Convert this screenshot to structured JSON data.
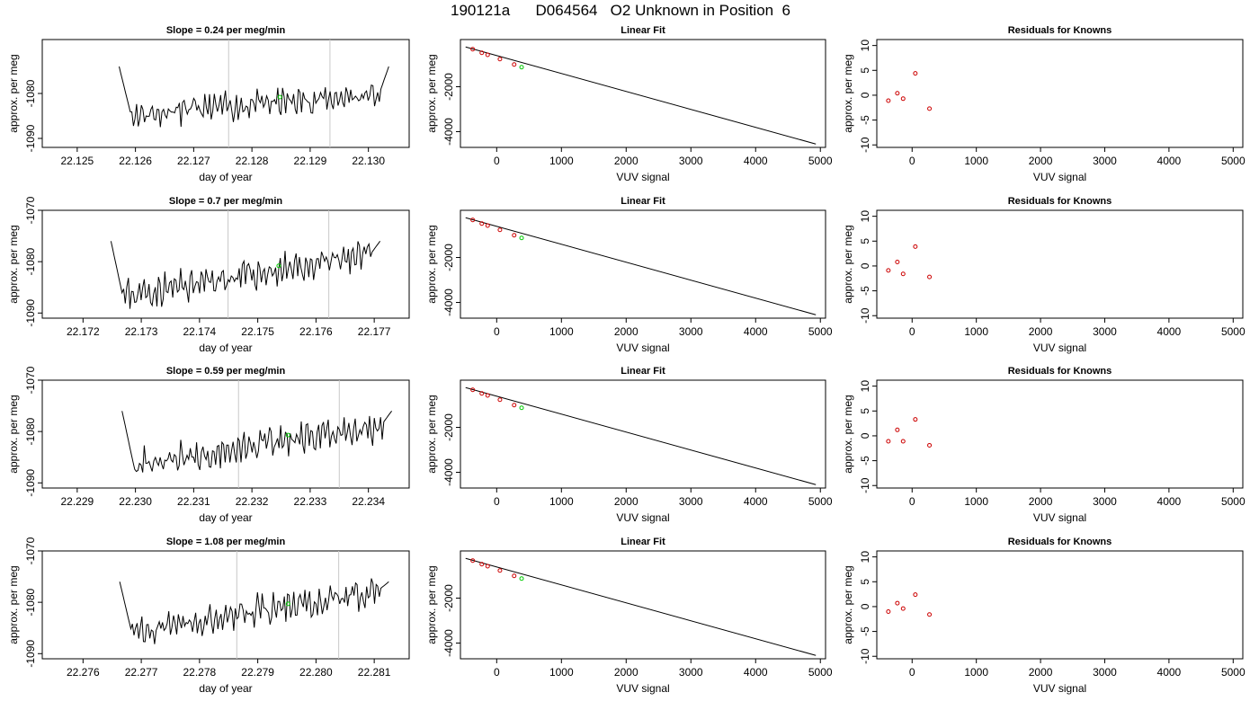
{
  "figure_title": "190121a      D064564   O2 Unknown in Position  6",
  "colors": {
    "line": "#000000",
    "guide": "#c8c8c8",
    "unknown": "#00cc00",
    "residual": "#cc0000"
  },
  "chart_data": [
    {
      "type": "line",
      "row": 0,
      "panel": "timeseries",
      "title": "Slope =  0.24  per meg/min",
      "xlabel": "day of year",
      "ylabel": "approx. per meg",
      "xlim": [
        22.1244,
        22.1307
      ],
      "ylim": [
        -1092,
        -1068
      ],
      "xticks": [
        "22.125",
        "22.126",
        "22.127",
        "22.128",
        "22.129",
        "22.130"
      ],
      "yticks": [
        "-1090",
        "-1080"
      ],
      "x_start": 22.12572,
      "x_end": 22.13035,
      "guides": [
        22.1276,
        22.12934
      ],
      "unknown_point": [
        22.12848,
        -1080.8
      ],
      "trend_start": -1085.0,
      "trend_end": -1080.0,
      "spike_left": -1068,
      "spike_right": -1068,
      "seed": 11
    },
    {
      "type": "scatter",
      "row": 0,
      "panel": "fit",
      "title": "Linear Fit",
      "xlabel": "VUV signal",
      "ylabel": "",
      "xlim": [
        -560,
        5080
      ],
      "ylim": [
        -4700,
        100
      ],
      "xticks": [
        "0",
        "1000",
        "2000",
        "3000",
        "4000",
        "5000"
      ],
      "yticks": [
        "-2000",
        "-4000"
      ],
      "knowns_x": [
        -370,
        -230,
        -140,
        50,
        270
      ],
      "knowns_y": [
        -330,
        -490,
        -580,
        -770,
        -1010
      ],
      "unknown_point": [
        385,
        -1130
      ],
      "fit_line": [
        [
          -480,
          -230
        ],
        [
          4930,
          -4550
        ]
      ]
    },
    {
      "type": "scatter",
      "row": 0,
      "panel": "residuals",
      "title": "Residuals for Knowns",
      "xlabel": "VUV signal",
      "ylabel": "",
      "xlim": [
        -550,
        5150
      ],
      "ylim": [
        -10.5,
        11.2
      ],
      "xticks": [
        "0",
        "1000",
        "2000",
        "3000",
        "4000",
        "5000"
      ],
      "yticks": [
        "-10",
        "-5",
        "0",
        "5",
        "10"
      ],
      "x": [
        -370,
        -230,
        -140,
        50,
        270
      ],
      "y": [
        -1.1,
        0.4,
        -0.7,
        4.4,
        -2.7
      ]
    },
    {
      "type": "line",
      "row": 1,
      "panel": "timeseries",
      "title": "Slope =  0.7  per meg/min",
      "xlabel": "day of year",
      "ylabel": "approx. per meg",
      "xlim": [
        22.1713,
        22.1776
      ],
      "ylim": [
        -1091,
        -1070
      ],
      "xticks": [
        "22.172",
        "22.173",
        "22.174",
        "22.175",
        "22.176",
        "22.177"
      ],
      "yticks": [
        "-1090",
        "-1080",
        "-1070"
      ],
      "x_start": 22.17248,
      "x_end": 22.1771,
      "guides": [
        22.17449,
        22.17622
      ],
      "unknown_point": [
        22.17536,
        -1080.8
      ],
      "trend_start": -1087.0,
      "trend_end": -1078.5,
      "spike_left": -1070,
      "spike_right": -1070,
      "seed": 23
    },
    {
      "type": "scatter",
      "row": 1,
      "panel": "fit",
      "title": "Linear Fit",
      "xlabel": "VUV signal",
      "ylabel": "",
      "xlim": [
        -560,
        5080
      ],
      "ylim": [
        -4700,
        100
      ],
      "xticks": [
        "0",
        "1000",
        "2000",
        "3000",
        "4000",
        "5000"
      ],
      "yticks": [
        "-2000",
        "-4000"
      ],
      "knowns_x": [
        -370,
        -230,
        -140,
        50,
        270
      ],
      "knowns_y": [
        -330,
        -490,
        -580,
        -770,
        -1010
      ],
      "unknown_point": [
        385,
        -1130
      ],
      "fit_line": [
        [
          -480,
          -230
        ],
        [
          4930,
          -4550
        ]
      ]
    },
    {
      "type": "scatter",
      "row": 1,
      "panel": "residuals",
      "title": "Residuals for Knowns",
      "xlabel": "VUV signal",
      "ylabel": "",
      "xlim": [
        -550,
        5150
      ],
      "ylim": [
        -10.5,
        11.2
      ],
      "xticks": [
        "0",
        "1000",
        "2000",
        "3000",
        "4000",
        "5000"
      ],
      "yticks": [
        "-10",
        "-5",
        "0",
        "5",
        "10"
      ],
      "x": [
        -370,
        -230,
        -140,
        50,
        270
      ],
      "y": [
        -0.9,
        0.8,
        -1.6,
        3.9,
        -2.2
      ]
    },
    {
      "type": "line",
      "row": 2,
      "panel": "timeseries",
      "title": "Slope =  0.59  per meg/min",
      "xlabel": "day of year",
      "ylabel": "approx. per meg",
      "xlim": [
        22.2284,
        22.2347
      ],
      "ylim": [
        -1091,
        -1070
      ],
      "xticks": [
        "22.229",
        "22.230",
        "22.231",
        "22.232",
        "22.233",
        "22.234"
      ],
      "yticks": [
        "-1090",
        "-1080",
        "-1070"
      ],
      "x_start": 22.22977,
      "x_end": 22.2344,
      "guides": [
        22.23177,
        22.2335
      ],
      "unknown_point": [
        22.23262,
        -1080.7
      ],
      "trend_start": -1087.0,
      "trend_end": -1078.5,
      "spike_left": -1070,
      "spike_right": -1070,
      "seed": 37
    },
    {
      "type": "scatter",
      "row": 2,
      "panel": "fit",
      "title": "Linear Fit",
      "xlabel": "VUV signal",
      "ylabel": "",
      "xlim": [
        -560,
        5080
      ],
      "ylim": [
        -4700,
        100
      ],
      "xticks": [
        "0",
        "1000",
        "2000",
        "3000",
        "4000",
        "5000"
      ],
      "yticks": [
        "-2000",
        "-4000"
      ],
      "knowns_x": [
        -370,
        -230,
        -140,
        50,
        270
      ],
      "knowns_y": [
        -330,
        -490,
        -580,
        -770,
        -1010
      ],
      "unknown_point": [
        385,
        -1130
      ],
      "fit_line": [
        [
          -480,
          -230
        ],
        [
          4930,
          -4550
        ]
      ]
    },
    {
      "type": "scatter",
      "row": 2,
      "panel": "residuals",
      "title": "Residuals for Knowns",
      "xlabel": "VUV signal",
      "ylabel": "",
      "xlim": [
        -550,
        5150
      ],
      "ylim": [
        -10.5,
        11.2
      ],
      "xticks": [
        "0",
        "1000",
        "2000",
        "3000",
        "4000",
        "5000"
      ],
      "yticks": [
        "-10",
        "-5",
        "0",
        "5",
        "10"
      ],
      "x": [
        -370,
        -230,
        -140,
        50,
        270
      ],
      "y": [
        -1.1,
        1.2,
        -1.1,
        3.3,
        -1.9
      ]
    },
    {
      "type": "line",
      "row": 3,
      "panel": "timeseries",
      "title": "Slope =  1.08  per meg/min",
      "xlabel": "day of year",
      "ylabel": "approx. per meg",
      "xlim": [
        22.2753,
        22.2816
      ],
      "ylim": [
        -1091,
        -1070
      ],
      "xticks": [
        "22.276",
        "22.277",
        "22.278",
        "22.279",
        "22.280",
        "22.281"
      ],
      "yticks": [
        "-1090",
        "-1080",
        "-1070"
      ],
      "x_start": 22.27663,
      "x_end": 22.28125,
      "guides": [
        22.27864,
        22.28039
      ],
      "unknown_point": [
        22.27952,
        -1080.3
      ],
      "trend_start": -1086.0,
      "trend_end": -1077.5,
      "spike_left": -1070,
      "spike_right": -1070,
      "seed": 51
    },
    {
      "type": "scatter",
      "row": 3,
      "panel": "fit",
      "title": "Linear Fit",
      "xlabel": "VUV signal",
      "ylabel": "",
      "xlim": [
        -560,
        5080
      ],
      "ylim": [
        -4700,
        100
      ],
      "xticks": [
        "0",
        "1000",
        "2000",
        "3000",
        "4000",
        "5000"
      ],
      "yticks": [
        "-2000",
        "-4000"
      ],
      "knowns_x": [
        -370,
        -230,
        -140,
        50,
        270
      ],
      "knowns_y": [
        -330,
        -490,
        -580,
        -770,
        -1010
      ],
      "unknown_point": [
        385,
        -1130
      ],
      "fit_line": [
        [
          -480,
          -230
        ],
        [
          4930,
          -4550
        ]
      ]
    },
    {
      "type": "scatter",
      "row": 3,
      "panel": "residuals",
      "title": "Residuals for Knowns",
      "xlabel": "VUV signal",
      "ylabel": "",
      "xlim": [
        -550,
        5150
      ],
      "ylim": [
        -10.5,
        11.2
      ],
      "xticks": [
        "0",
        "1000",
        "2000",
        "3000",
        "4000",
        "5000"
      ],
      "yticks": [
        "-10",
        "-5",
        "0",
        "5",
        "10"
      ],
      "x": [
        -370,
        -230,
        -140,
        50,
        270
      ],
      "y": [
        -1.0,
        0.7,
        -0.4,
        2.4,
        -1.6
      ]
    }
  ]
}
